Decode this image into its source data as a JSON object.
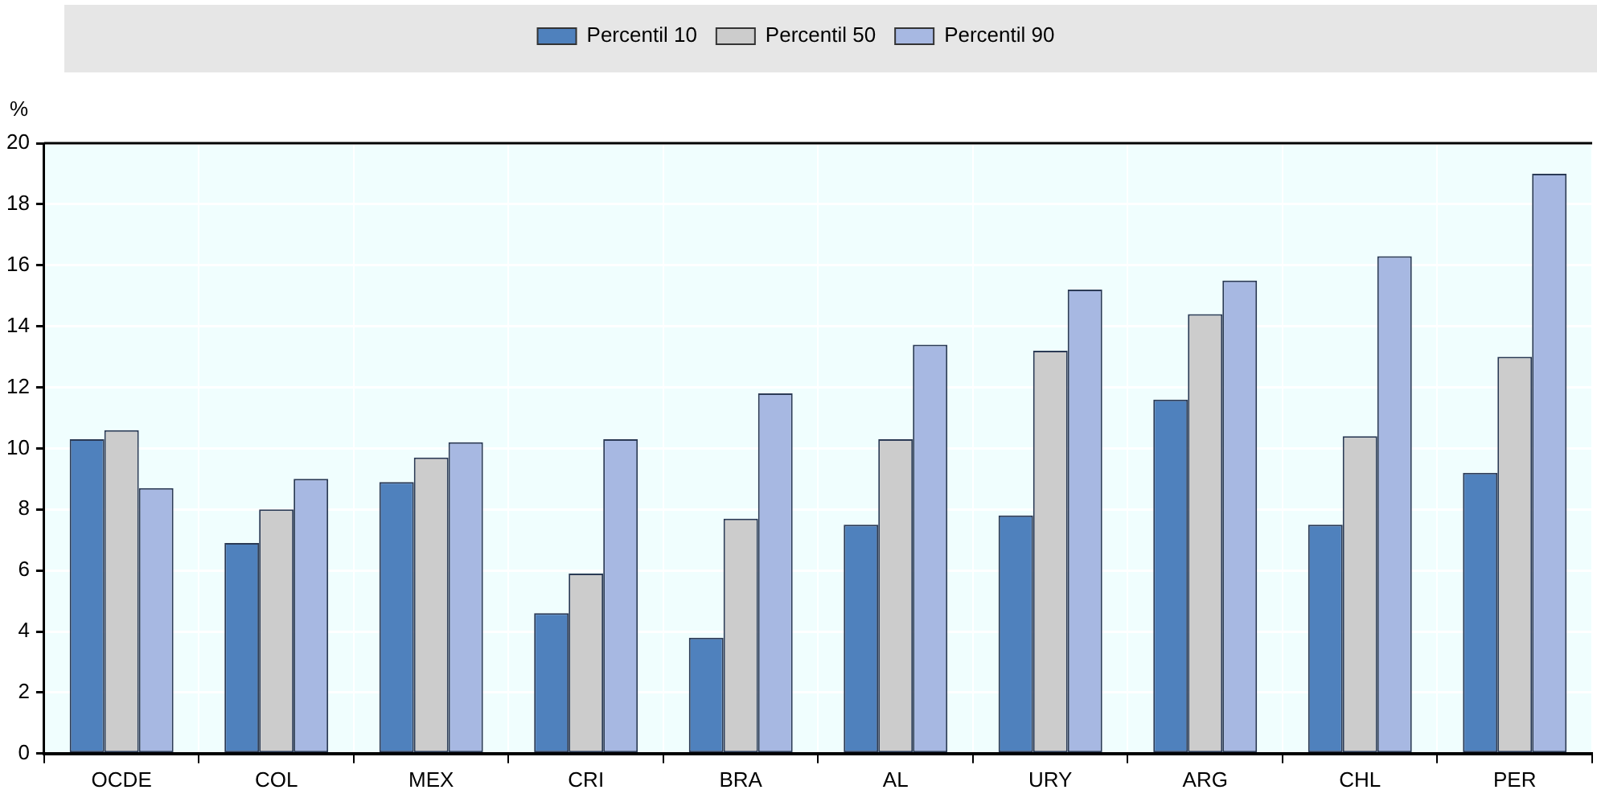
{
  "chart_data": {
    "type": "bar",
    "ylabel": "%",
    "categories": [
      "OCDE",
      "COL",
      "MEX",
      "CRI",
      "BRA",
      "AL",
      "URY",
      "ARG",
      "CHL",
      "PER"
    ],
    "series": [
      {
        "name": "Percentil 10",
        "color": "#4f81bd",
        "values": [
          10.3,
          6.9,
          8.9,
          4.6,
          3.8,
          7.5,
          7.8,
          11.6,
          7.5,
          9.2
        ]
      },
      {
        "name": "Percentil 50",
        "color": "#cccccc",
        "values": [
          10.6,
          8.0,
          9.7,
          5.9,
          7.7,
          10.3,
          13.2,
          14.4,
          10.4,
          13.0
        ]
      },
      {
        "name": "Percentil 90",
        "color": "#a7b8e2",
        "values": [
          8.7,
          9.0,
          10.2,
          10.3,
          11.8,
          13.4,
          15.2,
          15.5,
          16.3,
          19.0
        ]
      }
    ],
    "ylim": [
      0,
      20
    ],
    "yticks": [
      0,
      2,
      4,
      6,
      8,
      10,
      12,
      14,
      16,
      18,
      20
    ],
    "grid": true,
    "legend": "top"
  }
}
